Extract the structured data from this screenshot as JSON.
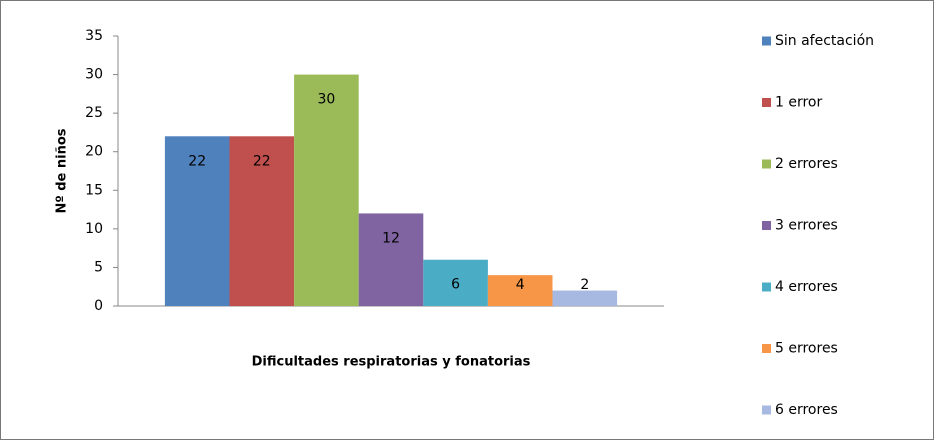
{
  "chart_data": {
    "type": "bar",
    "x_label": "Dificultades respiratorias y fonatorias",
    "y_label": "Nº de niños",
    "series": [
      {
        "name": "Sin afectación",
        "color": "#4f81bd",
        "values": [
          22
        ]
      },
      {
        "name": "1 error",
        "color": "#c0504d",
        "values": [
          22
        ]
      },
      {
        "name": "2 errores",
        "color": "#9bbb59",
        "values": [
          30
        ]
      },
      {
        "name": "3 errores",
        "color": "#8064a2",
        "values": [
          12
        ]
      },
      {
        "name": "4 errores",
        "color": "#4bacc6",
        "values": [
          6
        ]
      },
      {
        "name": "5 errores",
        "color": "#f79646",
        "values": [
          4
        ]
      },
      {
        "name": "6 errores",
        "color": "#a7b9e1",
        "values": [
          2
        ]
      }
    ],
    "ylim": [
      0,
      35
    ],
    "yticks": [
      0,
      5,
      10,
      15,
      20,
      25,
      30,
      35
    ],
    "grid": false,
    "legend": "right",
    "data_labels": true
  }
}
